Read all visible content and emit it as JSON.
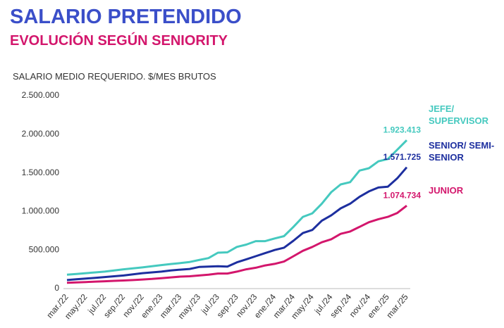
{
  "chart_data": {
    "type": "line",
    "title": "SALARIO PRETENDIDO",
    "subtitle": "EVOLUCIÓN SEGÚN SENIORITY",
    "y_label": "SALARIO MEDIO REQUERIDO. $/MES BRUTOS",
    "categories": [
      "mar./22",
      null,
      "may./22",
      null,
      "jul./22",
      null,
      "sep./22",
      null,
      "nov./22",
      null,
      "ene./23",
      null,
      "mar./23",
      null,
      "may./23",
      null,
      "jul./23",
      null,
      "sep./23",
      null,
      "nov./23",
      null,
      "ene./24",
      null,
      "mar./24",
      null,
      "may./24",
      null,
      "jul./24",
      null,
      "sep./24",
      null,
      "nov./24",
      null,
      "ene./25",
      null,
      "mar./25"
    ],
    "ylim": [
      0,
      2500000
    ],
    "yticks": [
      0,
      {
        "value": 500000,
        "label": "500.000"
      },
      {
        "value": 1000000,
        "label": "1.000.000"
      },
      {
        "value": 1500000,
        "label": "1.500.000"
      },
      {
        "value": 2000000,
        "label": "2.000.000"
      },
      {
        "value": 2500000,
        "label": "2.500.000"
      }
    ],
    "series": [
      {
        "name": "JEFE/ SUPERVISOR",
        "color": "#45c9bf",
        "values": [
          180000,
          190000,
          200000,
          210000,
          220000,
          235000,
          250000,
          262000,
          275000,
          290000,
          305000,
          318000,
          330000,
          345000,
          370000,
          395000,
          465000,
          470000,
          540000,
          570000,
          615000,
          615000,
          650000,
          680000,
          800000,
          930000,
          975000,
          1100000,
          1250000,
          1350000,
          1380000,
          1530000,
          1560000,
          1650000,
          1680000,
          1800000,
          1923413
        ],
        "value_labels": [
          null,
          null,
          null,
          null,
          null,
          null,
          null,
          null,
          null,
          null,
          null,
          null,
          null,
          null,
          null,
          null,
          null,
          null,
          null,
          null,
          null,
          null,
          null,
          null,
          null,
          null,
          null,
          null,
          null,
          null,
          null,
          null,
          null,
          null,
          null,
          null,
          "1.923.413"
        ]
      },
      {
        "name": "SENIOR/ SEMI-SENIOR",
        "color": "#1d2f9f",
        "values": [
          110000,
          120000,
          130000,
          140000,
          150000,
          160000,
          170000,
          185000,
          200000,
          210000,
          220000,
          235000,
          245000,
          255000,
          280000,
          285000,
          290000,
          285000,
          340000,
          380000,
          420000,
          460000,
          500000,
          530000,
          620000,
          720000,
          760000,
          880000,
          950000,
          1040000,
          1100000,
          1190000,
          1260000,
          1310000,
          1320000,
          1430000,
          1571725
        ],
        "value_labels": [
          null,
          null,
          null,
          null,
          null,
          null,
          null,
          null,
          null,
          null,
          null,
          null,
          null,
          null,
          null,
          null,
          null,
          null,
          null,
          null,
          null,
          null,
          null,
          null,
          null,
          null,
          null,
          null,
          null,
          null,
          null,
          null,
          null,
          null,
          null,
          null,
          "1.571.725"
        ]
      },
      {
        "name": "JUNIOR",
        "color": "#d3166c",
        "values": [
          75000,
          80000,
          85000,
          90000,
          95000,
          100000,
          105000,
          110000,
          118000,
          125000,
          135000,
          145000,
          155000,
          160000,
          170000,
          180000,
          195000,
          195000,
          220000,
          250000,
          270000,
          300000,
          320000,
          350000,
          420000,
          490000,
          540000,
          600000,
          640000,
          710000,
          740000,
          800000,
          860000,
          900000,
          930000,
          980000,
          1074734
        ],
        "value_labels": [
          null,
          null,
          null,
          null,
          null,
          null,
          null,
          null,
          null,
          null,
          null,
          null,
          null,
          null,
          null,
          null,
          null,
          null,
          null,
          null,
          null,
          null,
          null,
          null,
          null,
          null,
          null,
          null,
          null,
          null,
          null,
          null,
          null,
          null,
          null,
          null,
          "1.074.734"
        ]
      }
    ]
  }
}
